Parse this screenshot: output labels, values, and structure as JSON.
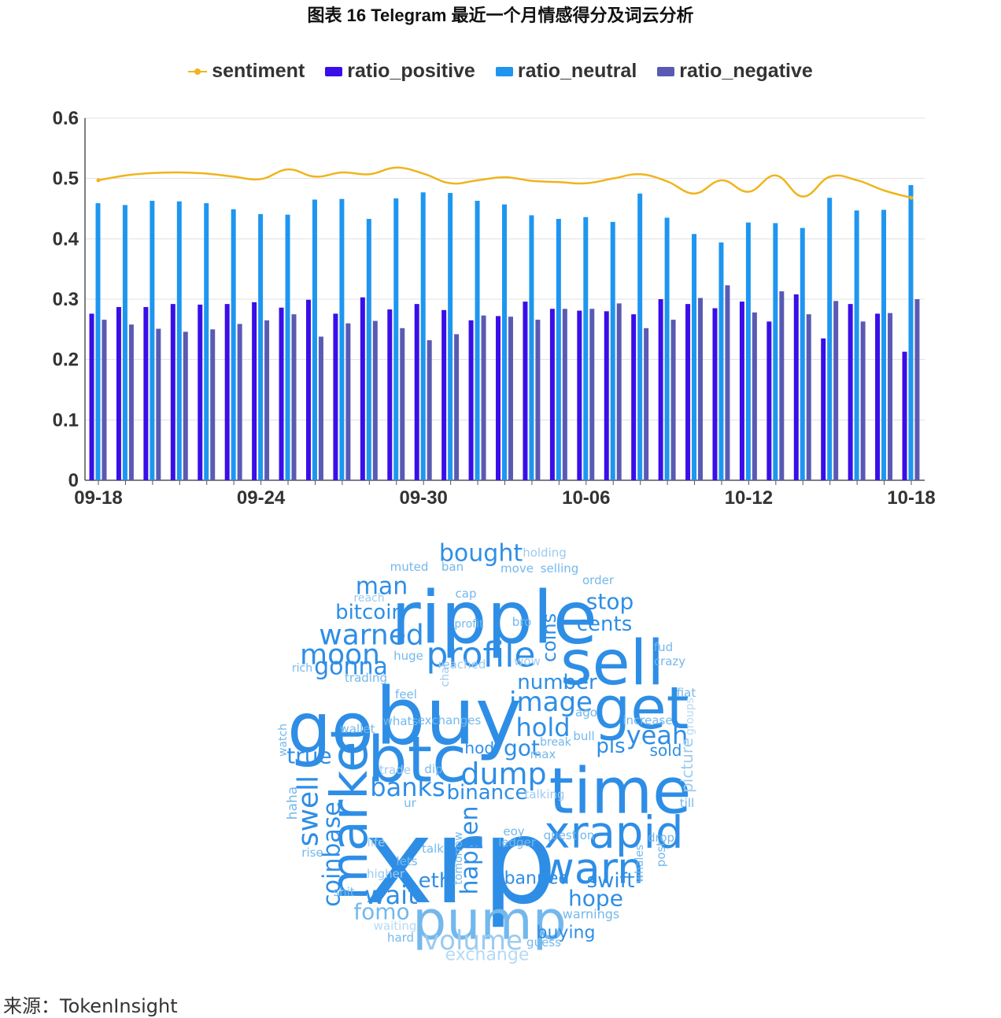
{
  "title": "图表 16 Telegram 最近一个月情感得分及词云分析",
  "source": "来源：TokenInsight",
  "colors": {
    "sentiment": "#f0b41c",
    "ratio_positive": "#3a0ee8",
    "ratio_neutral": "#1e96f0",
    "ratio_negative": "#5a5ab4",
    "grid": "#e0e0e0"
  },
  "chart_data": {
    "type": "bar",
    "series_types": {
      "sentiment": "line",
      "ratio_positive": "bar",
      "ratio_neutral": "bar",
      "ratio_negative": "bar"
    },
    "legend": [
      "sentiment",
      "ratio_positive",
      "ratio_neutral",
      "ratio_negative"
    ],
    "legend_position": "top",
    "ylim": [
      0,
      0.6
    ],
    "yticks": [
      0,
      0.1,
      0.2,
      0.3,
      0.4,
      0.5,
      0.6
    ],
    "xtick_labels": [
      "09-18",
      "09-24",
      "09-30",
      "10-06",
      "10-12",
      "10-18"
    ],
    "grid": true,
    "categories": [
      "09-18",
      "09-19",
      "09-20",
      "09-21",
      "09-22",
      "09-23",
      "09-24",
      "09-25",
      "09-26",
      "09-27",
      "09-28",
      "09-29",
      "09-30",
      "10-01",
      "10-02",
      "10-03",
      "10-04",
      "10-05",
      "10-06",
      "10-07",
      "10-08",
      "10-09",
      "10-10",
      "10-11",
      "10-12",
      "10-13",
      "10-14",
      "10-15",
      "10-16",
      "10-17",
      "10-18"
    ],
    "series": [
      {
        "name": "sentiment",
        "values": [
          0.497,
          0.505,
          0.509,
          0.51,
          0.508,
          0.503,
          0.499,
          0.515,
          0.503,
          0.51,
          0.507,
          0.518,
          0.508,
          0.492,
          0.497,
          0.502,
          0.496,
          0.494,
          0.492,
          0.5,
          0.507,
          0.495,
          0.475,
          0.497,
          0.478,
          0.505,
          0.47,
          0.503,
          0.497,
          0.48,
          0.468
        ]
      },
      {
        "name": "ratio_positive",
        "values": [
          0.276,
          0.287,
          0.287,
          0.292,
          0.291,
          0.292,
          0.295,
          0.286,
          0.299,
          0.276,
          0.303,
          0.283,
          0.292,
          0.282,
          0.265,
          0.272,
          0.296,
          0.284,
          0.281,
          0.28,
          0.275,
          0.3,
          0.292,
          0.285,
          0.296,
          0.263,
          0.308,
          0.235,
          0.292,
          0.276,
          0.213
        ]
      },
      {
        "name": "ratio_neutral",
        "values": [
          0.459,
          0.456,
          0.463,
          0.462,
          0.459,
          0.449,
          0.441,
          0.44,
          0.465,
          0.466,
          0.433,
          0.467,
          0.477,
          0.476,
          0.463,
          0.457,
          0.439,
          0.433,
          0.436,
          0.428,
          0.475,
          0.435,
          0.408,
          0.394,
          0.427,
          0.426,
          0.418,
          0.468,
          0.447,
          0.448,
          0.489
        ]
      },
      {
        "name": "ratio_negative",
        "values": [
          0.266,
          0.258,
          0.251,
          0.246,
          0.25,
          0.259,
          0.265,
          0.275,
          0.238,
          0.26,
          0.264,
          0.252,
          0.232,
          0.242,
          0.273,
          0.271,
          0.266,
          0.284,
          0.284,
          0.293,
          0.252,
          0.266,
          0.302,
          0.323,
          0.278,
          0.313,
          0.275,
          0.297,
          0.263,
          0.277,
          0.3
        ]
      }
    ]
  },
  "wordcloud": [
    {
      "text": "xrp",
      "size": 150,
      "color": "#2e8ee6",
      "rotate": 0
    },
    {
      "text": "buy",
      "size": 100,
      "color": "#2e8ee6",
      "rotate": 0
    },
    {
      "text": "ripple",
      "size": 92,
      "color": "#2e8ee6",
      "rotate": 0
    },
    {
      "text": "go",
      "size": 88,
      "color": "#2e8ee6",
      "rotate": 0
    },
    {
      "text": "btc",
      "size": 80,
      "color": "#2e8ee6",
      "rotate": 0
    },
    {
      "text": "time",
      "size": 80,
      "color": "#2e8ee6",
      "rotate": 0
    },
    {
      "text": "sell",
      "size": 78,
      "color": "#2e8ee6",
      "rotate": 0
    },
    {
      "text": "get",
      "size": 74,
      "color": "#2e8ee6",
      "rotate": 0
    },
    {
      "text": "pump",
      "size": 68,
      "color": "#73b8ec",
      "rotate": 0
    },
    {
      "text": "market",
      "size": 64,
      "color": "#2e8ee6",
      "rotate": -90
    },
    {
      "text": "xrapid",
      "size": 56,
      "color": "#2e8ee6",
      "rotate": 0
    },
    {
      "text": "warn",
      "size": 54,
      "color": "#2e8ee6",
      "rotate": 0
    },
    {
      "text": "profile",
      "size": 44,
      "color": "#2e8ee6",
      "rotate": 0
    },
    {
      "text": "image",
      "size": 34,
      "color": "#2e8ee6",
      "rotate": 0
    },
    {
      "text": "warned",
      "size": 36,
      "color": "#2e8ee6",
      "rotate": 0
    },
    {
      "text": "moon",
      "size": 36,
      "color": "#2e8ee6",
      "rotate": 0
    },
    {
      "text": "dump",
      "size": 38,
      "color": "#2e8ee6",
      "rotate": 0
    },
    {
      "text": "swell",
      "size": 36,
      "color": "#2e8ee6",
      "rotate": -90
    },
    {
      "text": "banks",
      "size": 32,
      "color": "#2e8ee6",
      "rotate": 0
    },
    {
      "text": "yeah",
      "size": 32,
      "color": "#2e8ee6",
      "rotate": 0
    },
    {
      "text": "hold",
      "size": 32,
      "color": "#2e8ee6",
      "rotate": 0
    },
    {
      "text": "wait",
      "size": 32,
      "color": "#2e8ee6",
      "rotate": 0
    },
    {
      "text": "volume",
      "size": 34,
      "color": "#9ccbf0",
      "rotate": 0
    },
    {
      "text": "bought",
      "size": 30,
      "color": "#2e8ee6",
      "rotate": 0
    },
    {
      "text": "man",
      "size": 30,
      "color": "#2e8ee6",
      "rotate": 0
    },
    {
      "text": "gonna",
      "size": 30,
      "color": "#2e8ee6",
      "rotate": 0
    },
    {
      "text": "stop",
      "size": 28,
      "color": "#2e8ee6",
      "rotate": 0
    },
    {
      "text": "cents",
      "size": 26,
      "color": "#2e8ee6",
      "rotate": 0
    },
    {
      "text": "bitcoin",
      "size": 26,
      "color": "#2e8ee6",
      "rotate": 0
    },
    {
      "text": "number",
      "size": 26,
      "color": "#2e8ee6",
      "rotate": 0
    },
    {
      "text": "true",
      "size": 28,
      "color": "#2e8ee6",
      "rotate": 0
    },
    {
      "text": "got",
      "size": 28,
      "color": "#2e8ee6",
      "rotate": 0
    },
    {
      "text": "binance",
      "size": 26,
      "color": "#2e8ee6",
      "rotate": 0
    },
    {
      "text": "hope",
      "size": 28,
      "color": "#2e8ee6",
      "rotate": 0
    },
    {
      "text": "fomo",
      "size": 28,
      "color": "#73b8ec",
      "rotate": 0
    },
    {
      "text": "happen",
      "size": 30,
      "color": "#2e8ee6",
      "rotate": -90
    },
    {
      "text": "coinbase",
      "size": 30,
      "color": "#2e8ee6",
      "rotate": -90
    },
    {
      "text": "swift",
      "size": 26,
      "color": "#2e8ee6",
      "rotate": 0
    },
    {
      "text": "eth",
      "size": 26,
      "color": "#2e8ee6",
      "rotate": 0
    },
    {
      "text": "pls",
      "size": 26,
      "color": "#2e8ee6",
      "rotate": 0
    },
    {
      "text": "banned",
      "size": 22,
      "color": "#2e8ee6",
      "rotate": 0
    },
    {
      "text": "buying",
      "size": 22,
      "color": "#2e8ee6",
      "rotate": 0
    },
    {
      "text": "coins",
      "size": 24,
      "color": "#2e8ee6",
      "rotate": -90
    },
    {
      "text": "hodl",
      "size": 20,
      "color": "#2e8ee6",
      "rotate": 0
    },
    {
      "text": "sold",
      "size": 20,
      "color": "#2e8ee6",
      "rotate": 0
    },
    {
      "text": "exchange",
      "size": 22,
      "color": "#b5daf6",
      "rotate": 0
    },
    {
      "text": "picture",
      "size": 20,
      "color": "#9ccbf0",
      "rotate": -90
    },
    {
      "text": "holding",
      "size": 15,
      "color": "#9ccbf0",
      "rotate": 0
    },
    {
      "text": "selling",
      "size": 15,
      "color": "#73b8ec",
      "rotate": 0
    },
    {
      "text": "muted",
      "size": 15,
      "color": "#73b8ec",
      "rotate": 0
    },
    {
      "text": "ban",
      "size": 15,
      "color": "#73b8ec",
      "rotate": 0
    },
    {
      "text": "move",
      "size": 15,
      "color": "#73b8ec",
      "rotate": 0
    },
    {
      "text": "order",
      "size": 15,
      "color": "#73b8ec",
      "rotate": 0
    },
    {
      "text": "reach",
      "size": 14,
      "color": "#9ccbf0",
      "rotate": 0
    },
    {
      "text": "cap",
      "size": 15,
      "color": "#73b8ec",
      "rotate": 0
    },
    {
      "text": "profit",
      "size": 14,
      "color": "#73b8ec",
      "rotate": 0
    },
    {
      "text": "bro",
      "size": 15,
      "color": "#73b8ec",
      "rotate": 0
    },
    {
      "text": "fud",
      "size": 15,
      "color": "#73b8ec",
      "rotate": 0
    },
    {
      "text": "crazy",
      "size": 15,
      "color": "#73b8ec",
      "rotate": 0
    },
    {
      "text": "huge",
      "size": 15,
      "color": "#73b8ec",
      "rotate": 0
    },
    {
      "text": "rich",
      "size": 14,
      "color": "#73b8ec",
      "rotate": 0
    },
    {
      "text": "reached",
      "size": 15,
      "color": "#9ccbf0",
      "rotate": 0
    },
    {
      "text": "wow",
      "size": 15,
      "color": "#9ccbf0",
      "rotate": 0
    },
    {
      "text": "trading",
      "size": 15,
      "color": "#73b8ec",
      "rotate": 0
    },
    {
      "text": "chat",
      "size": 14,
      "color": "#9ccbf0",
      "rotate": -90
    },
    {
      "text": "fiat",
      "size": 15,
      "color": "#73b8ec",
      "rotate": 0
    },
    {
      "text": "feel",
      "size": 15,
      "color": "#73b8ec",
      "rotate": 0
    },
    {
      "text": "ago",
      "size": 15,
      "color": "#73b8ec",
      "rotate": 0
    },
    {
      "text": "groups",
      "size": 14,
      "color": "#b5daf6",
      "rotate": -90
    },
    {
      "text": "whats",
      "size": 15,
      "color": "#73b8ec",
      "rotate": 0
    },
    {
      "text": "exchanges",
      "size": 15,
      "color": "#73b8ec",
      "rotate": 0
    },
    {
      "text": "increase",
      "size": 15,
      "color": "#73b8ec",
      "rotate": 0
    },
    {
      "text": "watch",
      "size": 14,
      "color": "#73b8ec",
      "rotate": -90
    },
    {
      "text": "wallet",
      "size": 15,
      "color": "#73b8ec",
      "rotate": 0
    },
    {
      "text": "bull",
      "size": 15,
      "color": "#73b8ec",
      "rotate": 0
    },
    {
      "text": "break",
      "size": 14,
      "color": "#73b8ec",
      "rotate": 0
    },
    {
      "text": "max",
      "size": 15,
      "color": "#73b8ec",
      "rotate": 0
    },
    {
      "text": "trade",
      "size": 15,
      "color": "#9ccbf0",
      "rotate": 0
    },
    {
      "text": "dip",
      "size": 15,
      "color": "#73b8ec",
      "rotate": 0
    },
    {
      "text": "haha",
      "size": 17,
      "color": "#73b8ec",
      "rotate": -90
    },
    {
      "text": "talking",
      "size": 15,
      "color": "#9ccbf0",
      "rotate": 0
    },
    {
      "text": "ur",
      "size": 15,
      "color": "#73b8ec",
      "rotate": 0
    },
    {
      "text": "till",
      "size": 15,
      "color": "#73b8ec",
      "rotate": 0
    },
    {
      "text": "eoy",
      "size": 15,
      "color": "#73b8ec",
      "rotate": 0
    },
    {
      "text": "question",
      "size": 15,
      "color": "#73b8ec",
      "rotate": 0
    },
    {
      "text": "ledger",
      "size": 15,
      "color": "#73b8ec",
      "rotate": 0
    },
    {
      "text": "drop",
      "size": 15,
      "color": "#73b8ec",
      "rotate": 0
    },
    {
      "text": "life",
      "size": 15,
      "color": "#9ccbf0",
      "rotate": 0
    },
    {
      "text": "talk",
      "size": 15,
      "color": "#73b8ec",
      "rotate": 0
    },
    {
      "text": "rise",
      "size": 15,
      "color": "#73b8ec",
      "rotate": 0
    },
    {
      "text": "tomorrow",
      "size": 14,
      "color": "#73b8ec",
      "rotate": -90
    },
    {
      "text": "post",
      "size": 15,
      "color": "#73b8ec",
      "rotate": -90
    },
    {
      "text": "lets",
      "size": 15,
      "color": "#73b8ec",
      "rotate": 0
    },
    {
      "text": "whales",
      "size": 14,
      "color": "#73b8ec",
      "rotate": -90
    },
    {
      "text": "higher",
      "size": 15,
      "color": "#9ccbf0",
      "rotate": 0
    },
    {
      "text": "shit",
      "size": 15,
      "color": "#73b8ec",
      "rotate": 0
    },
    {
      "text": "warnings",
      "size": 16,
      "color": "#73b8ec",
      "rotate": 0
    },
    {
      "text": "waiting",
      "size": 15,
      "color": "#b5daf6",
      "rotate": 0
    },
    {
      "text": "hard",
      "size": 15,
      "color": "#73b8ec",
      "rotate": 0
    },
    {
      "text": "guess",
      "size": 15,
      "color": "#73b8ec",
      "rotate": 0
    }
  ]
}
